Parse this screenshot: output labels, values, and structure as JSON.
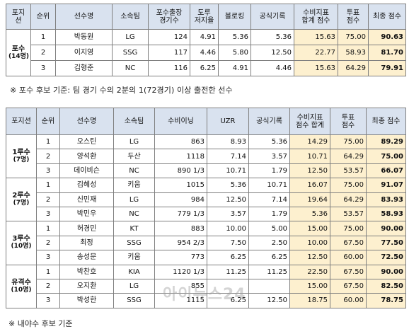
{
  "table1": {
    "headers": [
      "포지\n션",
      "순위",
      "선수명",
      "소속팀",
      "포수출장\n경기수",
      "도루\n저지율",
      "블로킹",
      "공식기록",
      "수비지표\n합계 점수",
      "투표\n점수",
      "최종 점수"
    ],
    "group": {
      "label": "포수",
      "count": "(14명)"
    },
    "rows": [
      {
        "rank": "1",
        "name": "박동원",
        "team": "LG",
        "games": "124",
        "cs": "4.91",
        "block": "5.36",
        "official": "5.36",
        "def": "15.63",
        "vote": "75.00",
        "final": "90.63"
      },
      {
        "rank": "2",
        "name": "이지영",
        "team": "SSG",
        "games": "117",
        "cs": "4.46",
        "block": "5.80",
        "official": "12.50",
        "def": "22.77",
        "vote": "58.93",
        "final": "81.70"
      },
      {
        "rank": "3",
        "name": "김형준",
        "team": "NC",
        "games": "116",
        "cs": "6.25",
        "block": "4.91",
        "official": "4.46",
        "def": "15.63",
        "vote": "64.29",
        "final": "79.91"
      }
    ]
  },
  "note": "※ 포수 후보 기준: 팀 경기 수의 2분의 1(72경기) 이상 출전한 선수",
  "table2": {
    "headers": [
      "포지션",
      "순위",
      "선수명",
      "소속팀",
      "수비이닝",
      "UZR",
      "공식기록",
      "수비지표\n점수 합계",
      "투표\n점수",
      "최종 점수"
    ],
    "groups": [
      {
        "label": "1루수",
        "count": "(7명)",
        "rows": [
          {
            "rank": "1",
            "name": "오스틴",
            "team": "LG",
            "inn": "863",
            "uzr": "8.93",
            "official": "5.36",
            "def": "14.29",
            "vote": "75.00",
            "final": "89.29"
          },
          {
            "rank": "2",
            "name": "양석환",
            "team": "두산",
            "inn": "1118",
            "uzr": "7.14",
            "official": "3.57",
            "def": "10.71",
            "vote": "64.29",
            "final": "75.00"
          },
          {
            "rank": "3",
            "name": "데이비슨",
            "team": "NC",
            "inn": "890 1/3",
            "uzr": "10.71",
            "official": "1.79",
            "def": "12.50",
            "vote": "53.57",
            "final": "66.07"
          }
        ]
      },
      {
        "label": "2루수",
        "count": "(7명)",
        "rows": [
          {
            "rank": "1",
            "name": "김혜성",
            "team": "키움",
            "inn": "1015",
            "uzr": "5.36",
            "official": "10.71",
            "def": "16.07",
            "vote": "75.00",
            "final": "91.07"
          },
          {
            "rank": "2",
            "name": "신민재",
            "team": "LG",
            "inn": "984",
            "uzr": "12.50",
            "official": "7.14",
            "def": "19.64",
            "vote": "64.29",
            "final": "83.93"
          },
          {
            "rank": "3",
            "name": "박민우",
            "team": "NC",
            "inn": "779 1/3",
            "uzr": "3.57",
            "official": "1.79",
            "def": "5.36",
            "vote": "53.57",
            "final": "58.93"
          }
        ]
      },
      {
        "label": "3루수",
        "count": "(10명)",
        "rows": [
          {
            "rank": "1",
            "name": "허경민",
            "team": "KT",
            "inn": "883",
            "uzr": "10.00",
            "official": "5.00",
            "def": "15.00",
            "vote": "75.00",
            "final": "90.00"
          },
          {
            "rank": "2",
            "name": "최정",
            "team": "SSG",
            "inn": "954 2/3",
            "uzr": "7.50",
            "official": "2.50",
            "def": "10.00",
            "vote": "67.50",
            "final": "77.50"
          },
          {
            "rank": "3",
            "name": "송성문",
            "team": "키움",
            "inn": "773",
            "uzr": "6.25",
            "official": "6.25",
            "def": "12.50",
            "vote": "60.00",
            "final": "72.50"
          }
        ]
      },
      {
        "label": "유격수",
        "count": "(10명)",
        "rows": [
          {
            "rank": "1",
            "name": "박찬호",
            "team": "KIA",
            "inn": "1120 1/3",
            "uzr": "11.25",
            "official": "11.25",
            "def": "22.50",
            "vote": "67.50",
            "final": "90.00"
          },
          {
            "rank": "2",
            "name": "오지환",
            "team": "LG",
            "inn": "855",
            "uzr": "",
            "official": "",
            "def": "15.00",
            "vote": "67.50",
            "final": "82.50"
          },
          {
            "rank": "3",
            "name": "박성한",
            "team": "SSG",
            "inn": "1115",
            "uzr": "6.25",
            "official": "12.50",
            "def": "18.75",
            "vote": "60.00",
            "final": "78.75"
          }
        ]
      }
    ]
  },
  "watermark": "아이뉴스24",
  "footer": "※ 내야수 후보 기준"
}
